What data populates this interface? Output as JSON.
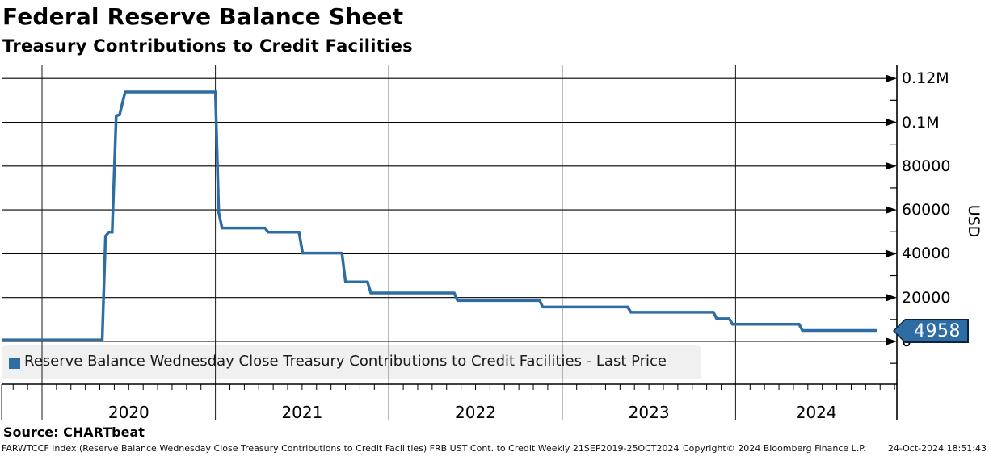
{
  "chart_data": {
    "type": "line",
    "title": "Federal Reserve Balance Sheet",
    "subtitle": "Treasury Contributions to Credit Facilities",
    "ylabel": "USD",
    "legend_label": "Reserve Balance Wednesday Close Treasury Contributions to Credit Facilities - Last Price",
    "line_color": "#2e6da4",
    "grid": true,
    "legend_position": "bottom-left",
    "last_price": 4958,
    "last_price_label": "4958",
    "frequency": "Weekly",
    "period": "21SEP2019-25OCT2024",
    "y_ticks": [
      {
        "label": "0.12M",
        "value": 120000
      },
      {
        "label": "0.1M",
        "value": 100000
      },
      {
        "label": "80000",
        "value": 80000
      },
      {
        "label": "60000",
        "value": 60000
      },
      {
        "label": "40000",
        "value": 40000
      },
      {
        "label": "20000",
        "value": 20000
      },
      {
        "label": "0",
        "value": 0
      }
    ],
    "y_minor_tick_values": [
      -10000,
      10000,
      30000,
      50000,
      70000,
      90000,
      110000
    ],
    "x_year_labels": [
      "2020",
      "2021",
      "2022",
      "2023",
      "2024"
    ],
    "points": [
      [
        "2019-09-21",
        700
      ],
      [
        "2020-05-06",
        700
      ],
      [
        "2020-05-13",
        48000
      ],
      [
        "2020-05-20",
        49800
      ],
      [
        "2020-05-27",
        49800
      ],
      [
        "2020-06-05",
        103000
      ],
      [
        "2020-06-12",
        103400
      ],
      [
        "2020-06-24",
        113800
      ],
      [
        "2021-01-01",
        113800
      ],
      [
        "2021-01-08",
        58900
      ],
      [
        "2021-01-15",
        51700
      ],
      [
        "2021-04-14",
        51700
      ],
      [
        "2021-04-21",
        49800
      ],
      [
        "2021-06-25",
        49800
      ],
      [
        "2021-07-02",
        40300
      ],
      [
        "2021-09-24",
        40300
      ],
      [
        "2021-10-01",
        27200
      ],
      [
        "2021-11-17",
        27200
      ],
      [
        "2021-11-24",
        22100
      ],
      [
        "2022-05-17",
        22100
      ],
      [
        "2022-05-24",
        18650
      ],
      [
        "2022-11-14",
        18650
      ],
      [
        "2022-11-21",
        15700
      ],
      [
        "2023-05-17",
        15700
      ],
      [
        "2023-05-24",
        13300
      ],
      [
        "2023-11-15",
        13300
      ],
      [
        "2023-11-22",
        10350
      ],
      [
        "2023-12-18",
        10350
      ],
      [
        "2023-12-25",
        7800
      ],
      [
        "2024-05-13",
        7800
      ],
      [
        "2024-05-20",
        4958
      ],
      [
        "2024-10-25",
        4958
      ]
    ]
  },
  "footer": {
    "source": "Source: CHARTbeat",
    "description": "FARWTCCF Index (Reserve Balance Wednesday Close Treasury Contributions to Credit Facilities) FRB UST Cont. to Credit  Weekly 21SEP2019-25OCT2024",
    "copyright": "Copyright© 2024 Bloomberg Finance L.P.",
    "timestamp": "24-Oct-2024 18:51:43"
  }
}
